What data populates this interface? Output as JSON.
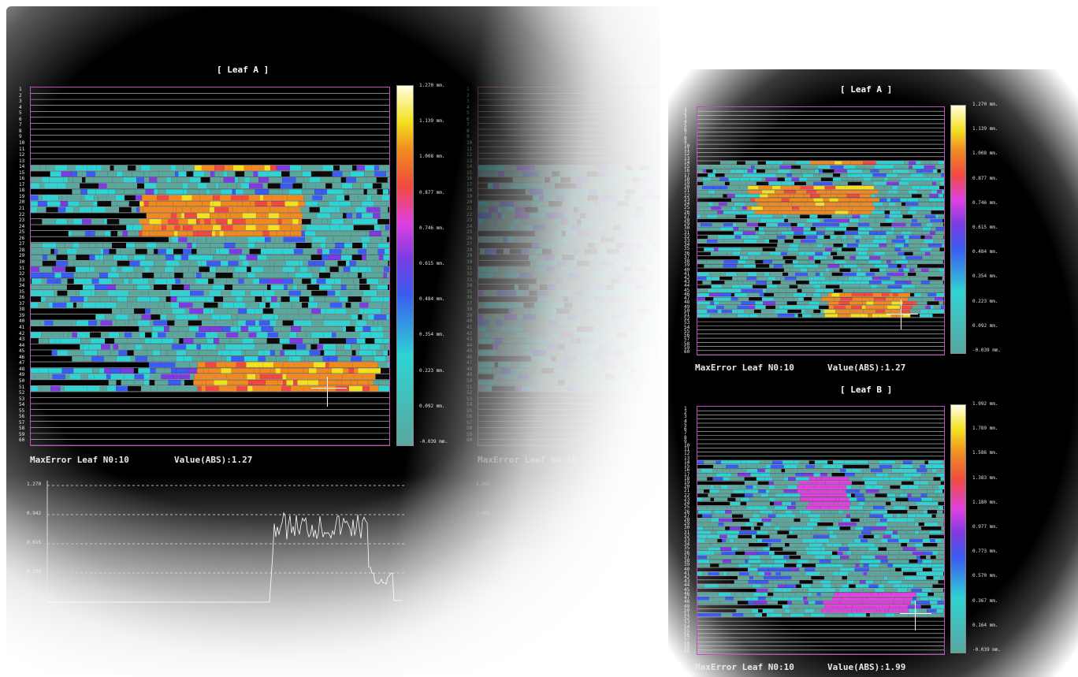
{
  "left_panel": {
    "title": "[ Leaf A ]",
    "info_label": "MaxError Leaf N0:10",
    "info_value": "Value(ABS):1.27",
    "ghost_info": "MaxError Leaf N0:10",
    "colorbar_ticks": [
      "1.270 mm.",
      "1.139 mm.",
      "1.008 mm.",
      "0.877 mm.",
      "0.746 mm.",
      "0.615 mm.",
      "0.484 mm.",
      "0.354 mm.",
      "0.223 mm.",
      "0.092 mm.",
      "-0.039 mm."
    ],
    "line_chart": {
      "y_ticks": [
        "1.270",
        "0.942",
        "0.615",
        "0.288"
      ],
      "ghost_y_ticks": [
        "1.992",
        "1.488",
        "1.072",
        "0.560"
      ]
    }
  },
  "right_panel": {
    "leaf_a": {
      "title": "[ Leaf A ]",
      "info_label": "MaxError Leaf N0:10",
      "info_value": "Value(ABS):1.27",
      "colorbar_ticks": [
        "1.270 mm.",
        "1.139 mm.",
        "1.008 mm.",
        "0.877 mm.",
        "0.746 mm.",
        "0.615 mm.",
        "0.484 mm.",
        "0.354 mm.",
        "0.223 mm.",
        "0.092 mm.",
        "-0.039 mm."
      ]
    },
    "leaf_b": {
      "title": "[ Leaf B ]",
      "info_label": "MaxError Leaf N0:10",
      "info_value": "Value(ABS):1.99",
      "colorbar_ticks": [
        "1.992 mm.",
        "1.789 mm.",
        "1.586 mm.",
        "1.383 mm.",
        "1.180 mm.",
        "0.977 mm.",
        "0.773 mm.",
        "0.570 mm.",
        "0.367 mm.",
        "0.164 mm.",
        "-0.039 mm."
      ]
    }
  },
  "leaf_numbers": [
    "1",
    "2",
    "3",
    "4",
    "5",
    "6",
    "7",
    "8",
    "9",
    "10",
    "11",
    "12",
    "13",
    "14",
    "15",
    "16",
    "17",
    "18",
    "19",
    "20",
    "21",
    "22",
    "23",
    "24",
    "25",
    "26",
    "27",
    "28",
    "29",
    "30",
    "31",
    "32",
    "33",
    "34",
    "35",
    "36",
    "37",
    "38",
    "39",
    "40",
    "41",
    "42",
    "43",
    "44",
    "45",
    "46",
    "47",
    "48",
    "49",
    "50",
    "51",
    "52",
    "53",
    "54",
    "55",
    "56",
    "57",
    "58",
    "59",
    "60"
  ],
  "colors": {
    "grid_border": "#c050c0",
    "scale": [
      "#5aa79e",
      "#2fd3d3",
      "#3a5cf0",
      "#7b3ce0",
      "#e040e0",
      "#f04a40",
      "#f08a20",
      "#f4e020",
      "#ffffe0"
    ]
  }
}
